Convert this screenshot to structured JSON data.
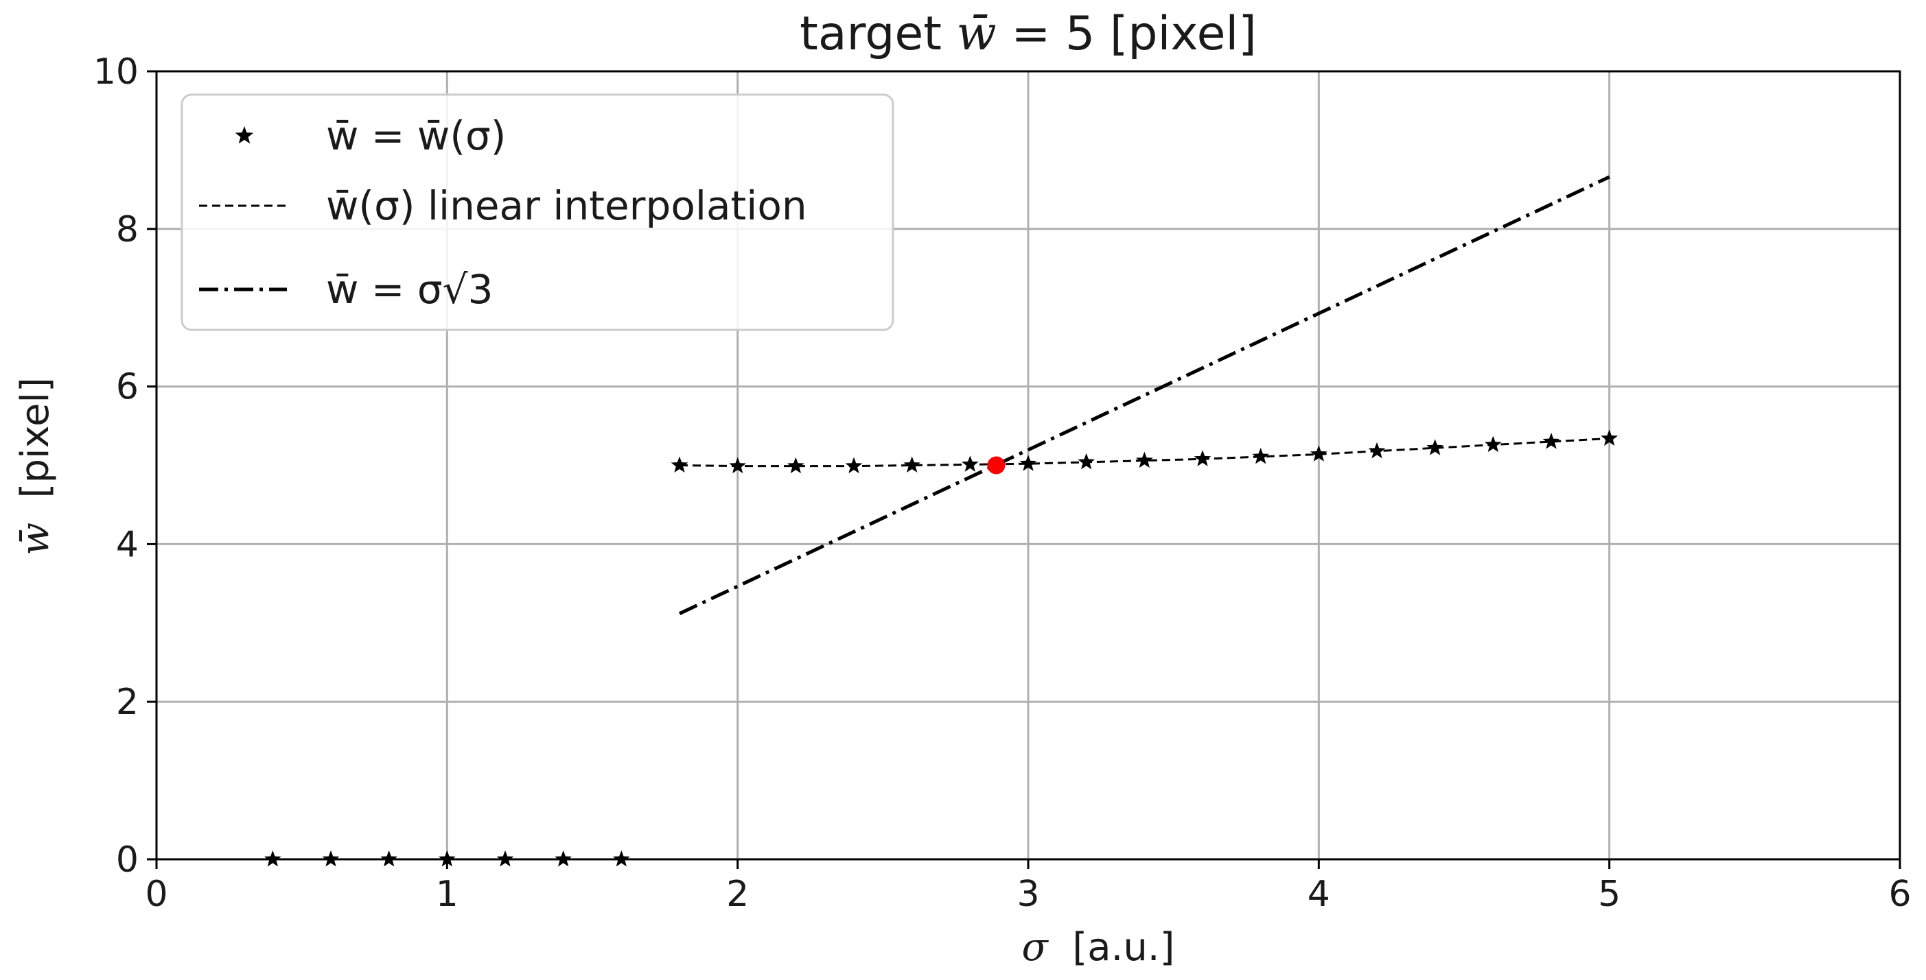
{
  "chart_data": {
    "type": "line",
    "title_prefix": "target ",
    "title_symbol": "w̄",
    "title_suffix": " = 5 [pixel]",
    "xlabel_symbol": "σ",
    "xlabel_unit": "  [a.u.]",
    "ylabel_symbol": "w̄",
    "ylabel_unit": "  [pixel]",
    "xlim": [
      0,
      6
    ],
    "ylim": [
      0,
      10
    ],
    "xticks": [
      "0",
      "1",
      "2",
      "3",
      "4",
      "5",
      "6"
    ],
    "yticks": [
      "0",
      "2",
      "4",
      "6",
      "8",
      "10"
    ],
    "grid": true,
    "legend_position": "upper-left",
    "series": [
      {
        "name": "w̄ = w̄(σ)",
        "style": "star-markers",
        "color": "#000000",
        "x": [
          0.4,
          0.6,
          0.8,
          1.0,
          1.2,
          1.4,
          1.6,
          1.8,
          2.0,
          2.2,
          2.4,
          2.6,
          2.8,
          3.0,
          3.2,
          3.4,
          3.6,
          3.8,
          4.0,
          4.2,
          4.4,
          4.6,
          4.8,
          5.0
        ],
        "y": [
          0,
          0,
          0,
          0,
          0,
          0,
          0,
          5.0,
          4.99,
          4.99,
          4.99,
          5.0,
          5.01,
          5.02,
          5.04,
          5.06,
          5.08,
          5.11,
          5.14,
          5.18,
          5.22,
          5.26,
          5.3,
          5.34
        ]
      },
      {
        "name": "w̄(σ) linear interpolation",
        "style": "dashed",
        "color": "#000000",
        "x": [
          1.8,
          2.0,
          2.2,
          2.4,
          2.6,
          2.8,
          3.0,
          3.2,
          3.4,
          3.6,
          3.8,
          4.0,
          4.2,
          4.4,
          4.6,
          4.8,
          5.0
        ],
        "y": [
          5.0,
          4.99,
          4.99,
          4.99,
          5.0,
          5.01,
          5.02,
          5.04,
          5.06,
          5.08,
          5.11,
          5.14,
          5.18,
          5.22,
          5.26,
          5.3,
          5.34
        ]
      },
      {
        "name": "w̄ = σ√3",
        "style": "dashdot",
        "color": "#000000",
        "x": [
          1.8,
          5.0
        ],
        "y": [
          3.118,
          8.66
        ]
      }
    ],
    "intersection": {
      "x": 2.89,
      "y": 5.0,
      "color": "#ff0000"
    }
  }
}
